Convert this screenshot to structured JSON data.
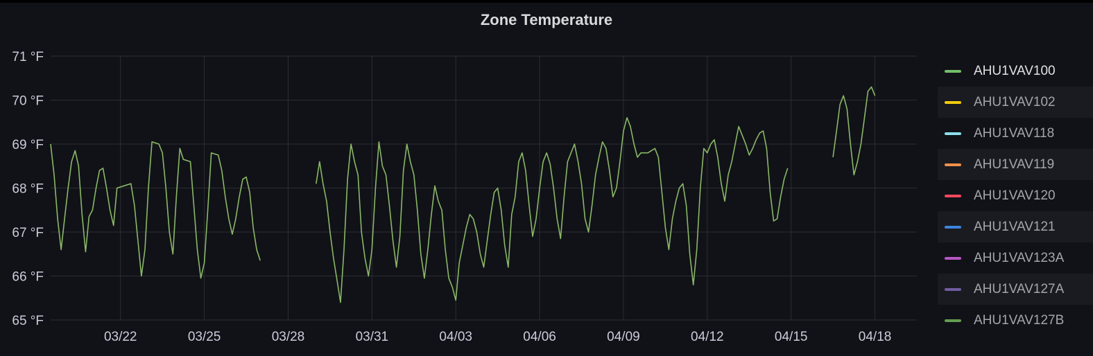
{
  "panel": {
    "title": "Zone Temperature"
  },
  "chart_data": {
    "type": "line",
    "title": "Zone Temperature",
    "xlabel": "",
    "ylabel": "",
    "unit": "°F",
    "grid": true,
    "legend_position": "right",
    "xlim": [
      "2023-03-19T12:00",
      "2023-04-19T12:00"
    ],
    "ylim": [
      65,
      71
    ],
    "y_ticks": [
      {
        "value": 65,
        "label": "65 °F"
      },
      {
        "value": 66,
        "label": "66 °F"
      },
      {
        "value": 67,
        "label": "67 °F"
      },
      {
        "value": 68,
        "label": "68 °F"
      },
      {
        "value": 69,
        "label": "69 °F"
      },
      {
        "value": 70,
        "label": "70 °F"
      },
      {
        "value": 71,
        "label": "71 °F"
      }
    ],
    "x_ticks": [
      {
        "value": "2023-03-22T00:00",
        "label": "03/22"
      },
      {
        "value": "2023-03-25T00:00",
        "label": "03/25"
      },
      {
        "value": "2023-03-28T00:00",
        "label": "03/28"
      },
      {
        "value": "2023-03-31T00:00",
        "label": "03/31"
      },
      {
        "value": "2023-04-03T00:00",
        "label": "04/03"
      },
      {
        "value": "2023-04-06T00:00",
        "label": "04/06"
      },
      {
        "value": "2023-04-09T00:00",
        "label": "04/09"
      },
      {
        "value": "2023-04-12T00:00",
        "label": "04/12"
      },
      {
        "value": "2023-04-15T00:00",
        "label": "04/15"
      },
      {
        "value": "2023-04-18T00:00",
        "label": "04/18"
      }
    ],
    "series": [
      {
        "name": "AHU1VAV100",
        "color": "#8ab868",
        "segments": [
          [
            [
              "2023-03-19T12:00",
              69.0
            ],
            [
              "2023-03-19T15:00",
              68.3
            ],
            [
              "2023-03-19T18:00",
              67.3
            ],
            [
              "2023-03-19T21:00",
              66.6
            ],
            [
              "2023-03-20T00:00",
              67.3
            ],
            [
              "2023-03-20T03:00",
              68.0
            ],
            [
              "2023-03-20T06:00",
              68.6
            ],
            [
              "2023-03-20T09:00",
              68.85
            ],
            [
              "2023-03-20T12:00",
              68.5
            ],
            [
              "2023-03-20T15:00",
              67.4
            ],
            [
              "2023-03-20T18:00",
              66.55
            ],
            [
              "2023-03-20T21:00",
              67.35
            ],
            [
              "2023-03-21T00:00",
              67.5
            ],
            [
              "2023-03-21T03:00",
              68.0
            ],
            [
              "2023-03-21T06:00",
              68.4
            ],
            [
              "2023-03-21T09:00",
              68.45
            ],
            [
              "2023-03-21T12:00",
              68.0
            ],
            [
              "2023-03-21T15:00",
              67.5
            ],
            [
              "2023-03-21T18:00",
              67.15
            ],
            [
              "2023-03-21T21:00",
              68.0
            ],
            [
              "2023-03-22T03:00",
              68.05
            ],
            [
              "2023-03-22T09:00",
              68.1
            ],
            [
              "2023-03-22T12:00",
              67.6
            ],
            [
              "2023-03-22T15:00",
              66.8
            ],
            [
              "2023-03-22T18:00",
              66.0
            ],
            [
              "2023-03-22T21:00",
              66.6
            ],
            [
              "2023-03-23T00:00",
              68.0
            ],
            [
              "2023-03-23T03:00",
              69.05
            ],
            [
              "2023-03-23T09:00",
              69.0
            ],
            [
              "2023-03-23T12:00",
              68.8
            ],
            [
              "2023-03-23T15:00",
              68.0
            ],
            [
              "2023-03-23T18:00",
              67.0
            ],
            [
              "2023-03-23T21:00",
              66.5
            ],
            [
              "2023-03-24T00:00",
              67.8
            ],
            [
              "2023-03-24T03:00",
              68.9
            ],
            [
              "2023-03-24T06:00",
              68.65
            ],
            [
              "2023-03-24T12:00",
              68.6
            ],
            [
              "2023-03-24T15:00",
              67.6
            ],
            [
              "2023-03-24T18:00",
              66.6
            ],
            [
              "2023-03-24T21:00",
              65.95
            ],
            [
              "2023-03-25T00:00",
              66.3
            ],
            [
              "2023-03-25T03:00",
              67.5
            ],
            [
              "2023-03-25T06:00",
              68.8
            ],
            [
              "2023-03-25T12:00",
              68.75
            ],
            [
              "2023-03-25T15:00",
              68.4
            ],
            [
              "2023-03-25T18:00",
              67.8
            ],
            [
              "2023-03-25T21:00",
              67.3
            ],
            [
              "2023-03-26T00:00",
              66.95
            ],
            [
              "2023-03-26T03:00",
              67.3
            ],
            [
              "2023-03-26T06:00",
              67.8
            ],
            [
              "2023-03-26T09:00",
              68.2
            ],
            [
              "2023-03-26T12:00",
              68.25
            ],
            [
              "2023-03-26T15:00",
              67.9
            ],
            [
              "2023-03-26T18:00",
              67.1
            ],
            [
              "2023-03-26T21:00",
              66.6
            ],
            [
              "2023-03-27T00:00",
              66.35
            ]
          ],
          [
            [
              "2023-03-29T00:00",
              68.1
            ],
            [
              "2023-03-29T03:00",
              68.6
            ],
            [
              "2023-03-29T06:00",
              68.1
            ],
            [
              "2023-03-29T09:00",
              67.7
            ],
            [
              "2023-03-29T12:00",
              67.0
            ],
            [
              "2023-03-29T15:00",
              66.4
            ],
            [
              "2023-03-29T18:00",
              65.9
            ],
            [
              "2023-03-29T21:00",
              65.4
            ],
            [
              "2023-03-30T00:00",
              66.6
            ],
            [
              "2023-03-30T03:00",
              68.2
            ],
            [
              "2023-03-30T06:00",
              69.0
            ],
            [
              "2023-03-30T09:00",
              68.6
            ],
            [
              "2023-03-30T12:00",
              68.3
            ],
            [
              "2023-03-30T15:00",
              67.0
            ],
            [
              "2023-03-30T18:00",
              66.4
            ],
            [
              "2023-03-30T21:00",
              66.0
            ],
            [
              "2023-03-31T00:00",
              66.6
            ],
            [
              "2023-03-31T03:00",
              68.0
            ],
            [
              "2023-03-31T06:00",
              69.05
            ],
            [
              "2023-03-31T09:00",
              68.5
            ],
            [
              "2023-03-31T12:00",
              68.3
            ],
            [
              "2023-03-31T15:00",
              67.6
            ],
            [
              "2023-03-31T18:00",
              66.8
            ],
            [
              "2023-03-31T21:00",
              66.2
            ],
            [
              "2023-04-01T00:00",
              66.9
            ],
            [
              "2023-04-01T03:00",
              68.4
            ],
            [
              "2023-04-01T06:00",
              69.0
            ],
            [
              "2023-04-01T09:00",
              68.6
            ],
            [
              "2023-04-01T12:00",
              68.3
            ],
            [
              "2023-04-01T15:00",
              67.5
            ],
            [
              "2023-04-01T18:00",
              66.5
            ],
            [
              "2023-04-01T21:00",
              65.95
            ],
            [
              "2023-04-02T00:00",
              66.6
            ],
            [
              "2023-04-02T03:00",
              67.4
            ],
            [
              "2023-04-02T06:00",
              68.05
            ],
            [
              "2023-04-02T09:00",
              67.7
            ],
            [
              "2023-04-02T12:00",
              67.5
            ],
            [
              "2023-04-02T15:00",
              66.6
            ],
            [
              "2023-04-02T18:00",
              65.95
            ],
            [
              "2023-04-02T21:00",
              65.75
            ],
            [
              "2023-04-03T00:00",
              65.45
            ],
            [
              "2023-04-03T03:00",
              66.3
            ],
            [
              "2023-04-03T06:00",
              66.7
            ],
            [
              "2023-04-03T09:00",
              67.1
            ],
            [
              "2023-04-03T12:00",
              67.4
            ],
            [
              "2023-04-03T15:00",
              67.3
            ],
            [
              "2023-04-03T18:00",
              67.0
            ],
            [
              "2023-04-03T21:00",
              66.5
            ],
            [
              "2023-04-04T00:00",
              66.2
            ],
            [
              "2023-04-04T03:00",
              66.8
            ],
            [
              "2023-04-04T06:00",
              67.4
            ],
            [
              "2023-04-04T09:00",
              67.9
            ],
            [
              "2023-04-04T12:00",
              68.0
            ],
            [
              "2023-04-04T15:00",
              67.5
            ],
            [
              "2023-04-04T18:00",
              66.7
            ],
            [
              "2023-04-04T21:00",
              66.2
            ],
            [
              "2023-04-05T00:00",
              67.4
            ],
            [
              "2023-04-05T03:00",
              67.8
            ],
            [
              "2023-04-05T06:00",
              68.6
            ],
            [
              "2023-04-05T09:00",
              68.8
            ],
            [
              "2023-04-05T12:00",
              68.4
            ],
            [
              "2023-04-05T15:00",
              67.6
            ],
            [
              "2023-04-05T18:00",
              66.9
            ],
            [
              "2023-04-05T21:00",
              67.3
            ],
            [
              "2023-04-06T00:00",
              68.0
            ],
            [
              "2023-04-06T03:00",
              68.6
            ],
            [
              "2023-04-06T06:00",
              68.8
            ],
            [
              "2023-04-06T09:00",
              68.55
            ],
            [
              "2023-04-06T12:00",
              68.0
            ],
            [
              "2023-04-06T15:00",
              67.3
            ],
            [
              "2023-04-06T18:00",
              66.85
            ],
            [
              "2023-04-06T21:00",
              67.8
            ],
            [
              "2023-04-07T00:00",
              68.6
            ],
            [
              "2023-04-07T03:00",
              68.8
            ],
            [
              "2023-04-07T06:00",
              69.0
            ],
            [
              "2023-04-07T09:00",
              68.6
            ],
            [
              "2023-04-07T12:00",
              68.1
            ],
            [
              "2023-04-07T15:00",
              67.3
            ],
            [
              "2023-04-07T18:00",
              67.0
            ],
            [
              "2023-04-07T21:00",
              67.6
            ],
            [
              "2023-04-08T00:00",
              68.3
            ],
            [
              "2023-04-08T03:00",
              68.7
            ],
            [
              "2023-04-08T06:00",
              69.05
            ],
            [
              "2023-04-08T09:00",
              68.9
            ],
            [
              "2023-04-08T12:00",
              68.4
            ],
            [
              "2023-04-08T15:00",
              67.8
            ],
            [
              "2023-04-08T18:00",
              68.0
            ],
            [
              "2023-04-08T21:00",
              68.6
            ],
            [
              "2023-04-09T00:00",
              69.3
            ],
            [
              "2023-04-09T03:00",
              69.6
            ],
            [
              "2023-04-09T06:00",
              69.4
            ],
            [
              "2023-04-09T09:00",
              69.0
            ],
            [
              "2023-04-09T12:00",
              68.7
            ],
            [
              "2023-04-09T15:00",
              68.8
            ],
            [
              "2023-04-09T21:00",
              68.8
            ],
            [
              "2023-04-10T03:00",
              68.9
            ],
            [
              "2023-04-10T06:00",
              68.7
            ],
            [
              "2023-04-10T09:00",
              67.9
            ],
            [
              "2023-04-10T12:00",
              67.1
            ],
            [
              "2023-04-10T15:00",
              66.6
            ],
            [
              "2023-04-10T18:00",
              67.3
            ],
            [
              "2023-04-10T21:00",
              67.7
            ],
            [
              "2023-04-11T00:00",
              68.0
            ],
            [
              "2023-04-11T03:00",
              68.1
            ],
            [
              "2023-04-11T06:00",
              67.6
            ],
            [
              "2023-04-11T09:00",
              66.5
            ],
            [
              "2023-04-11T12:00",
              65.8
            ],
            [
              "2023-04-11T15:00",
              66.6
            ],
            [
              "2023-04-11T18:00",
              68.0
            ],
            [
              "2023-04-11T21:00",
              68.9
            ],
            [
              "2023-04-12T00:00",
              68.8
            ],
            [
              "2023-04-12T03:00",
              69.0
            ],
            [
              "2023-04-12T06:00",
              69.1
            ],
            [
              "2023-04-12T09:00",
              68.7
            ],
            [
              "2023-04-12T12:00",
              68.1
            ],
            [
              "2023-04-12T15:00",
              67.7
            ],
            [
              "2023-04-12T18:00",
              68.3
            ],
            [
              "2023-04-12T21:00",
              68.6
            ],
            [
              "2023-04-13T00:00",
              69.0
            ],
            [
              "2023-04-13T03:00",
              69.4
            ],
            [
              "2023-04-13T06:00",
              69.2
            ],
            [
              "2023-04-13T09:00",
              69.0
            ],
            [
              "2023-04-13T12:00",
              68.75
            ],
            [
              "2023-04-13T15:00",
              68.9
            ],
            [
              "2023-04-13T18:00",
              69.1
            ],
            [
              "2023-04-13T21:00",
              69.25
            ],
            [
              "2023-04-14T00:00",
              69.3
            ],
            [
              "2023-04-14T03:00",
              68.9
            ],
            [
              "2023-04-14T06:00",
              67.9
            ],
            [
              "2023-04-14T09:00",
              67.25
            ],
            [
              "2023-04-14T12:00",
              67.3
            ],
            [
              "2023-04-14T15:00",
              67.8
            ],
            [
              "2023-04-14T18:00",
              68.2
            ],
            [
              "2023-04-14T21:00",
              68.45
            ]
          ],
          [
            [
              "2023-04-16T12:00",
              68.7
            ],
            [
              "2023-04-16T15:00",
              69.3
            ],
            [
              "2023-04-16T18:00",
              69.9
            ],
            [
              "2023-04-16T21:00",
              70.1
            ],
            [
              "2023-04-17T00:00",
              69.8
            ],
            [
              "2023-04-17T03:00",
              69.0
            ],
            [
              "2023-04-17T06:00",
              68.3
            ],
            [
              "2023-04-17T09:00",
              68.6
            ],
            [
              "2023-04-17T12:00",
              69.0
            ],
            [
              "2023-04-17T15:00",
              69.6
            ],
            [
              "2023-04-17T18:00",
              70.2
            ],
            [
              "2023-04-17T21:00",
              70.3
            ],
            [
              "2023-04-18T00:00",
              70.1
            ]
          ]
        ]
      }
    ]
  },
  "legend": {
    "items": [
      {
        "label": "AHU1VAV100",
        "color": "#73bf69",
        "active": true
      },
      {
        "label": "AHU1VAV102",
        "color": "#f2cc0c",
        "active": false
      },
      {
        "label": "AHU1VAV118",
        "color": "#8ae0eb",
        "active": false
      },
      {
        "label": "AHU1VAV119",
        "color": "#f18f48",
        "active": false
      },
      {
        "label": "AHU1VAV120",
        "color": "#f2495c",
        "active": false
      },
      {
        "label": "AHU1VAV121",
        "color": "#3d85de",
        "active": false
      },
      {
        "label": "AHU1VAV123A",
        "color": "#b856c4",
        "active": false
      },
      {
        "label": "AHU1VAV127A",
        "color": "#705da0",
        "active": false
      },
      {
        "label": "AHU1VAV127B",
        "color": "#629e51",
        "active": false
      }
    ]
  }
}
